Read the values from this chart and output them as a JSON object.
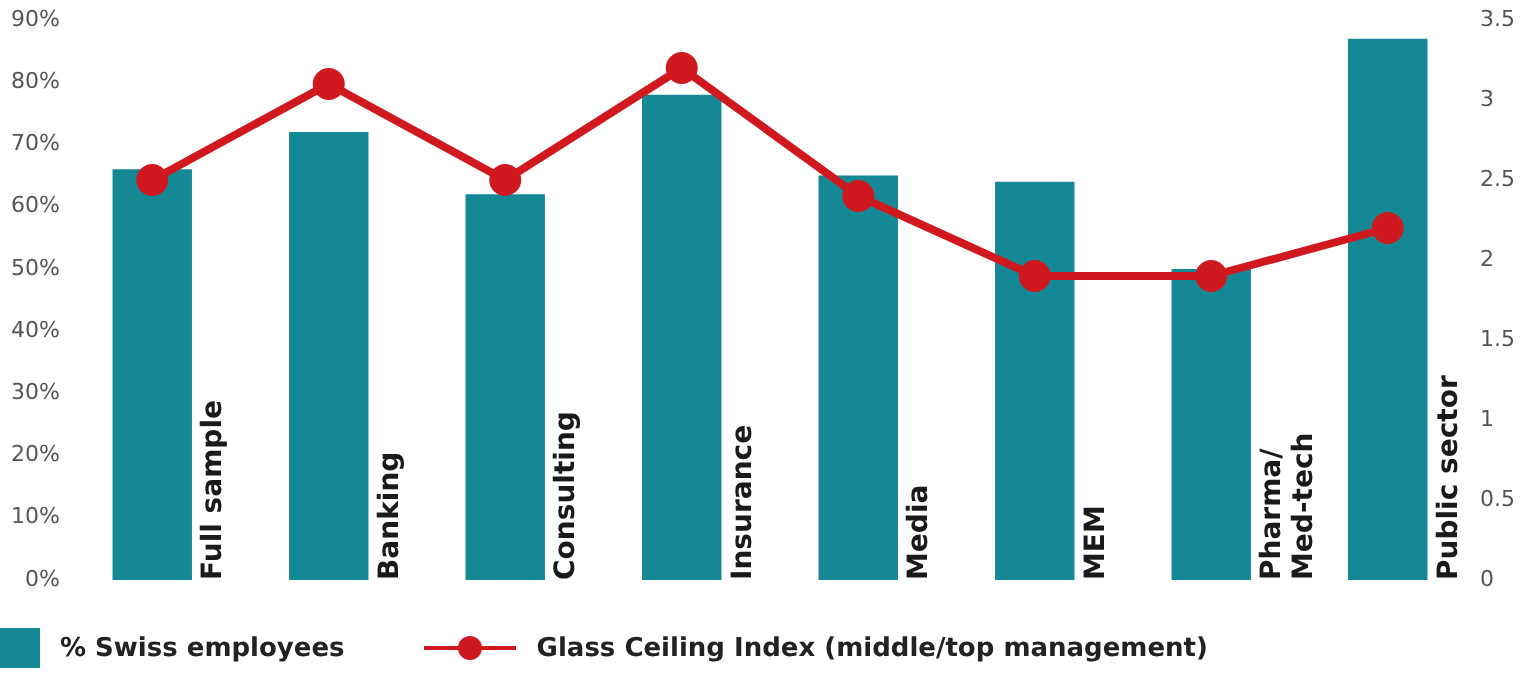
{
  "chart_data": {
    "type": "bar",
    "categories": [
      "Full sample",
      "Banking",
      "Consulting",
      "Insurance",
      "Media",
      "MEM",
      "Pharma/\nMed-tech",
      "Public sector"
    ],
    "series": [
      {
        "name": "% Swiss employees",
        "color": "#158896",
        "values": [
          66,
          72,
          62,
          78,
          65,
          64,
          50,
          87
        ]
      },
      {
        "name": "Glass Ceiling Index (middle/top management)",
        "type": "line",
        "axis": "y2",
        "color": "#d0191f",
        "values": [
          2.5,
          3.1,
          2.5,
          3.2,
          2.4,
          1.9,
          1.9,
          2.2
        ]
      }
    ],
    "ylim": [
      0,
      90
    ],
    "yticks": [
      {
        "value": 0,
        "label": "0%"
      },
      {
        "value": 10,
        "label": "10%"
      },
      {
        "value": 20,
        "label": "20%"
      },
      {
        "value": 30,
        "label": "30%"
      },
      {
        "value": 40,
        "label": "40%"
      },
      {
        "value": 50,
        "label": "50%"
      },
      {
        "value": 60,
        "label": "60%"
      },
      {
        "value": 70,
        "label": "70%"
      },
      {
        "value": 80,
        "label": "80%"
      },
      {
        "value": 90,
        "label": "90%"
      }
    ],
    "y2lim": [
      0,
      3.5
    ],
    "y2ticks": [
      0,
      0.5,
      1,
      1.5,
      2,
      2.5,
      3,
      3.5
    ],
    "grid": false,
    "legend": "bottom left",
    "marker": "circle",
    "line_style": "solid"
  }
}
